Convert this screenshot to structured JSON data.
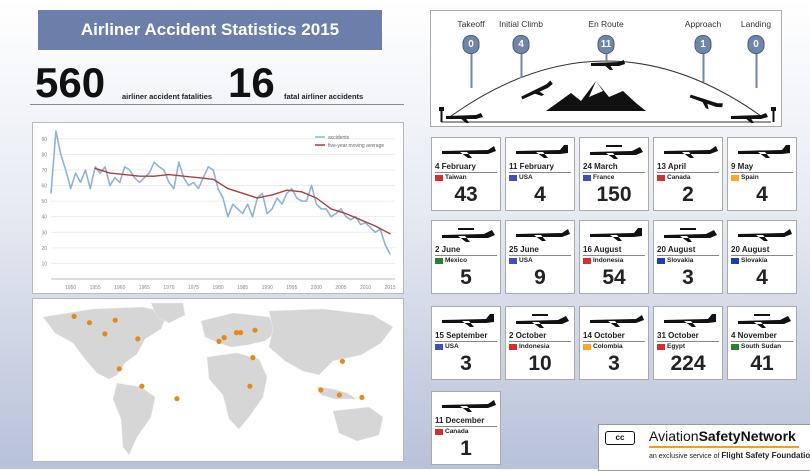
{
  "header": {
    "title": "Airliner Accident Statistics 2015",
    "fatalities_value": "560",
    "fatalities_label": "airliner accident fatalities",
    "accidents_value": "16",
    "accidents_label": "fatal airliner accidents"
  },
  "phases": [
    {
      "name": "Takeoff",
      "count": "0"
    },
    {
      "name": "Initial Climb",
      "count": "4"
    },
    {
      "name": "En Route",
      "count": "11"
    },
    {
      "name": "Approach",
      "count": "1"
    },
    {
      "name": "Landing",
      "count": "0"
    }
  ],
  "accidents": [
    {
      "date": "4 February",
      "country": "Taiwan",
      "fatalities": "43"
    },
    {
      "date": "11 February",
      "country": "USA",
      "fatalities": "4"
    },
    {
      "date": "24 March",
      "country": "France",
      "fatalities": "150"
    },
    {
      "date": "13 April",
      "country": "Canada",
      "fatalities": "2"
    },
    {
      "date": "9 May",
      "country": "Spain",
      "fatalities": "4"
    },
    {
      "date": "2 June",
      "country": "Mexico",
      "fatalities": "5"
    },
    {
      "date": "25 June",
      "country": "USA",
      "fatalities": "9"
    },
    {
      "date": "16 August",
      "country": "Indonesia",
      "fatalities": "54"
    },
    {
      "date": "20 August",
      "country": "Slovakia",
      "fatalities": "3"
    },
    {
      "date": "20 August",
      "country": "Slovakia",
      "fatalities": "4"
    },
    {
      "date": "15 September",
      "country": "USA",
      "fatalities": "3"
    },
    {
      "date": "2 October",
      "country": "Indonesia",
      "fatalities": "10"
    },
    {
      "date": "14 October",
      "country": "Colombia",
      "fatalities": "3"
    },
    {
      "date": "31 October",
      "country": "Egypt",
      "fatalities": "224"
    },
    {
      "date": "4 November",
      "country": "South Sudan",
      "fatalities": "41"
    },
    {
      "date": "11 December",
      "country": "Canada",
      "fatalities": "1"
    }
  ],
  "flags": {
    "Taiwan": "#d32f2f",
    "USA": "#3f51b5",
    "France": "#3f51b5",
    "Canada": "#d32f2f",
    "Spain": "#f9a825",
    "Mexico": "#2e7d32",
    "Indonesia": "#d32f2f",
    "Slovakia": "#1e40af",
    "Colombia": "#f9a825",
    "Egypt": "#d32f2f",
    "South Sudan": "#2e7d32"
  },
  "brand": {
    "name_regular": "Aviation",
    "name_bold": "SafetyNetwork",
    "tagline_regular": "an exclusive service of",
    "tagline_bold": "Flight Safety Foundation",
    "cc_label": "cc"
  },
  "colors": {
    "banner": "#6b7faa",
    "accidents_line": "#8fb3d6",
    "average_line": "#a64141",
    "map_dot": "#e38a1c",
    "phase_circle": "#6e86a8"
  },
  "chart_data": {
    "type": "line",
    "title": "",
    "legend": [
      "accidents",
      "five-year moving average"
    ],
    "legend_position": "top-right",
    "x_ticks": [
      1950,
      1955,
      1960,
      1965,
      1970,
      1975,
      1980,
      1985,
      1990,
      1995,
      2000,
      2005,
      2010,
      2015
    ],
    "y_ticks": [
      10,
      20,
      30,
      40,
      50,
      60,
      70,
      80,
      90
    ],
    "ylim": [
      0,
      95
    ],
    "xlim": [
      1946,
      2016
    ],
    "grid": true,
    "series": [
      {
        "name": "accidents",
        "x": [
          1946,
          1947,
          1948,
          1949,
          1950,
          1951,
          1952,
          1953,
          1954,
          1955,
          1956,
          1957,
          1958,
          1959,
          1960,
          1961,
          1962,
          1963,
          1964,
          1965,
          1966,
          1967,
          1968,
          1969,
          1970,
          1971,
          1972,
          1973,
          1974,
          1975,
          1976,
          1977,
          1978,
          1979,
          1980,
          1981,
          1982,
          1983,
          1984,
          1985,
          1986,
          1987,
          1988,
          1989,
          1990,
          1991,
          1992,
          1993,
          1994,
          1995,
          1996,
          1997,
          1998,
          1999,
          2000,
          2001,
          2002,
          2003,
          2004,
          2005,
          2006,
          2007,
          2008,
          2009,
          2010,
          2011,
          2012,
          2013,
          2014,
          2015
        ],
        "y": [
          55,
          95,
          80,
          70,
          58,
          68,
          62,
          70,
          58,
          72,
          68,
          72,
          60,
          65,
          62,
          72,
          70,
          65,
          62,
          65,
          68,
          75,
          72,
          70,
          62,
          58,
          75,
          65,
          60,
          62,
          58,
          65,
          72,
          70,
          58,
          52,
          40,
          48,
          45,
          42,
          48,
          40,
          52,
          55,
          42,
          45,
          52,
          48,
          55,
          58,
          52,
          50,
          50,
          60,
          48,
          45,
          45,
          40,
          42,
          45,
          40,
          38,
          40,
          35,
          36,
          33,
          30,
          32,
          22,
          16
        ]
      },
      {
        "name": "five-year moving average",
        "x": [
          1955,
          1958,
          1961,
          1964,
          1967,
          1970,
          1973,
          1976,
          1979,
          1982,
          1985,
          1988,
          1991,
          1994,
          1997,
          2000,
          2003,
          2006,
          2009,
          2012,
          2015
        ],
        "y": [
          71,
          68,
          67,
          66,
          66,
          67,
          66,
          65,
          64,
          58,
          55,
          52,
          54,
          57,
          56,
          52,
          45,
          42,
          38,
          34,
          29
        ]
      }
    ]
  },
  "map_data": {
    "type": "map",
    "markers": [
      {
        "lat": 47,
        "lon": -110
      },
      {
        "lat": 61,
        "lon": -140
      },
      {
        "lat": 58,
        "lon": -100
      },
      {
        "lat": 56,
        "lon": -125
      },
      {
        "lat": 43,
        "lon": -78
      },
      {
        "lat": 19,
        "lon": -96
      },
      {
        "lat": 5,
        "lon": -74
      },
      {
        "lat": -5,
        "lon": -40
      },
      {
        "lat": 41,
        "lon": 1
      },
      {
        "lat": 44,
        "lon": 6
      },
      {
        "lat": 48,
        "lon": 18
      },
      {
        "lat": 48,
        "lon": 22
      },
      {
        "lat": 50,
        "lon": 36
      },
      {
        "lat": 28,
        "lon": 34
      },
      {
        "lat": 5,
        "lon": 31
      },
      {
        "lat": 25,
        "lon": 121
      },
      {
        "lat": -2,
        "lon": 118
      },
      {
        "lat": -4,
        "lon": 140
      },
      {
        "lat": 2,
        "lon": 100
      }
    ]
  }
}
